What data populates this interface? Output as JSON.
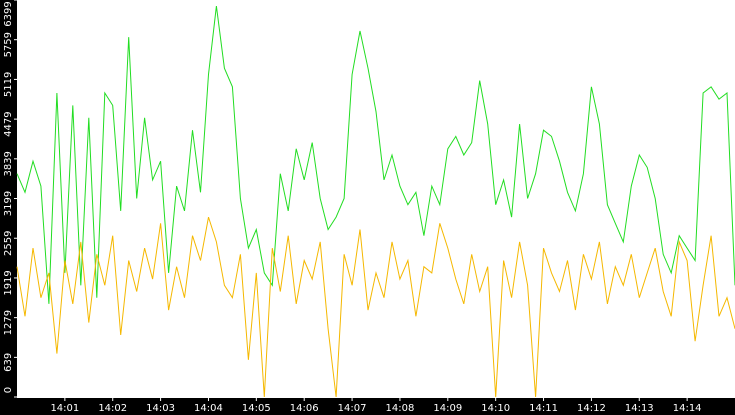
{
  "chart_data": {
    "type": "line",
    "x": [
      0,
      10,
      20,
      30,
      40,
      50,
      60,
      70,
      80,
      90,
      100,
      110,
      120,
      130,
      140,
      150,
      160,
      170,
      180,
      190,
      200,
      210,
      220,
      230,
      240,
      250,
      260,
      270,
      280,
      290,
      300,
      310,
      320,
      330,
      340,
      350,
      360,
      370,
      380,
      390,
      400,
      410,
      420,
      430,
      440,
      450,
      460,
      470,
      480,
      490,
      500,
      510,
      520,
      530,
      540,
      550,
      560,
      570,
      580,
      590,
      600,
      610,
      620,
      630,
      640,
      650,
      660,
      670,
      680,
      690,
      700,
      710,
      720,
      730,
      740,
      750,
      760,
      770,
      780,
      790,
      800,
      810,
      820,
      830,
      840,
      850,
      860,
      870,
      880,
      890,
      900
    ],
    "xlim": [
      0,
      900
    ],
    "xticks": [
      {
        "value": 60,
        "label": "14:01"
      },
      {
        "value": 120,
        "label": "14:02"
      },
      {
        "value": 180,
        "label": "14:03"
      },
      {
        "value": 240,
        "label": "14:04"
      },
      {
        "value": 300,
        "label": "14:05"
      },
      {
        "value": 360,
        "label": "14:06"
      },
      {
        "value": 420,
        "label": "14:07"
      },
      {
        "value": 480,
        "label": "14:08"
      },
      {
        "value": 540,
        "label": "14:09"
      },
      {
        "value": 600,
        "label": "14:10"
      },
      {
        "value": 660,
        "label": "14:11"
      },
      {
        "value": 720,
        "label": "14:12"
      },
      {
        "value": 780,
        "label": "14:13"
      },
      {
        "value": 840,
        "label": "14:14"
      }
    ],
    "ylim": [
      0,
      6399
    ],
    "yticks": [
      0,
      639,
      1279,
      1919,
      2559,
      3199,
      3839,
      4479,
      5119,
      5759,
      6399
    ],
    "series": [
      {
        "color": "#22dd22",
        "values": [
          3600,
          3300,
          3800,
          3400,
          1500,
          4900,
          2000,
          4700,
          1800,
          4500,
          1600,
          4900,
          4700,
          3000,
          5800,
          3200,
          4500,
          3500,
          3800,
          2000,
          3400,
          3000,
          4300,
          3300,
          5200,
          6300,
          5300,
          5000,
          3200,
          2400,
          2700,
          2000,
          1800,
          3600,
          3000,
          4000,
          3500,
          4100,
          3200,
          2700,
          2900,
          3200,
          5200,
          5900,
          5300,
          4600,
          3500,
          3900,
          3400,
          3100,
          3300,
          2600,
          3400,
          3100,
          4000,
          4200,
          3900,
          4100,
          5100,
          4400,
          3100,
          3500,
          2900,
          4400,
          3200,
          3600,
          4300,
          4200,
          3800,
          3300,
          3000,
          3600,
          5000,
          4400,
          3100,
          2800,
          2500,
          3400,
          3900,
          3700,
          3200,
          2300,
          2000,
          2600,
          2400,
          2200,
          4900,
          5000,
          4800,
          4900,
          1800
        ]
      },
      {
        "color": "#f5b800",
        "values": [
          2100,
          1300,
          2400,
          1600,
          2000,
          700,
          2200,
          1500,
          2500,
          1200,
          2300,
          1800,
          2600,
          1000,
          2200,
          1700,
          2400,
          1900,
          2800,
          1400,
          2100,
          1600,
          2600,
          2200,
          2900,
          2500,
          1800,
          1600,
          2300,
          600,
          2000,
          0,
          2400,
          1700,
          2600,
          1500,
          2200,
          1900,
          2500,
          1100,
          0,
          2300,
          1800,
          2700,
          1400,
          2000,
          1600,
          2500,
          1900,
          2200,
          1300,
          2100,
          2000,
          2800,
          2400,
          1900,
          1500,
          2300,
          1700,
          2100,
          0,
          2200,
          1600,
          2500,
          1800,
          0,
          2400,
          2000,
          1700,
          2200,
          1400,
          2300,
          1900,
          2500,
          1500,
          2100,
          1800,
          2300,
          1600,
          2000,
          2400,
          1700,
          1300,
          2500,
          2200,
          900,
          1800,
          2600,
          1300,
          1600,
          1100
        ]
      }
    ]
  }
}
